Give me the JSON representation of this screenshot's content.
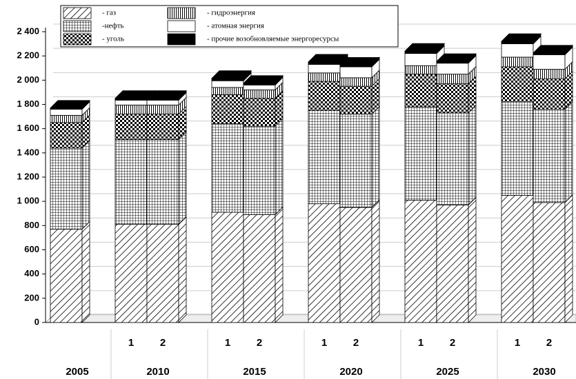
{
  "chart_data": {
    "type": "bar3d-stacked",
    "groups": [
      {
        "name": "2005",
        "categories": [
          null
        ]
      },
      {
        "name": "2010",
        "categories": [
          "1",
          "2"
        ]
      },
      {
        "name": "2015",
        "categories": [
          "1",
          "2"
        ]
      },
      {
        "name": "2020",
        "categories": [
          "1",
          "2"
        ]
      },
      {
        "name": "2025",
        "categories": [
          "1",
          "2"
        ]
      },
      {
        "name": "2030",
        "categories": [
          "1",
          "2"
        ]
      }
    ],
    "series": [
      {
        "name": "- газ",
        "pattern": "hatch",
        "values": [
          770,
          810,
          810,
          910,
          890,
          980,
          950,
          1010,
          970,
          1050,
          990
        ]
      },
      {
        "name": "-нефть",
        "pattern": "grid",
        "values": [
          670,
          700,
          700,
          730,
          730,
          770,
          770,
          770,
          760,
          770,
          770
        ]
      },
      {
        "name": "- уголь",
        "pattern": "checker",
        "values": [
          210,
          210,
          210,
          240,
          230,
          240,
          230,
          270,
          240,
          290,
          250
        ]
      },
      {
        "name": "- гидроэнергия",
        "pattern": "vertical",
        "values": [
          60,
          75,
          75,
          60,
          70,
          70,
          70,
          70,
          80,
          80,
          80
        ]
      },
      {
        "name": "- атомная энергия",
        "pattern": "none",
        "values": [
          50,
          40,
          40,
          55,
          40,
          70,
          90,
          100,
          90,
          110,
          120
        ]
      },
      {
        "name": "- прочие возобновляемые энергоресурсы",
        "pattern": "solid",
        "values": [
          10,
          15,
          15,
          20,
          15,
          20,
          15,
          20,
          15,
          20,
          15
        ]
      }
    ],
    "ylim": [
      0,
      2400
    ],
    "yticks": [
      0,
      200,
      400,
      600,
      800,
      {
        "value": 1000,
        "label": "1 000"
      },
      {
        "value": 1200,
        "label": "1 200"
      },
      {
        "value": 1400,
        "label": "1 400"
      },
      {
        "value": 1600,
        "label": "1 600"
      },
      {
        "value": 1800,
        "label": "1 800"
      },
      {
        "value": 2000,
        "label": "2 000"
      },
      {
        "value": 2200,
        "label": "2 200"
      },
      {
        "value": 2400,
        "label": "2 400"
      }
    ],
    "grid": true
  }
}
